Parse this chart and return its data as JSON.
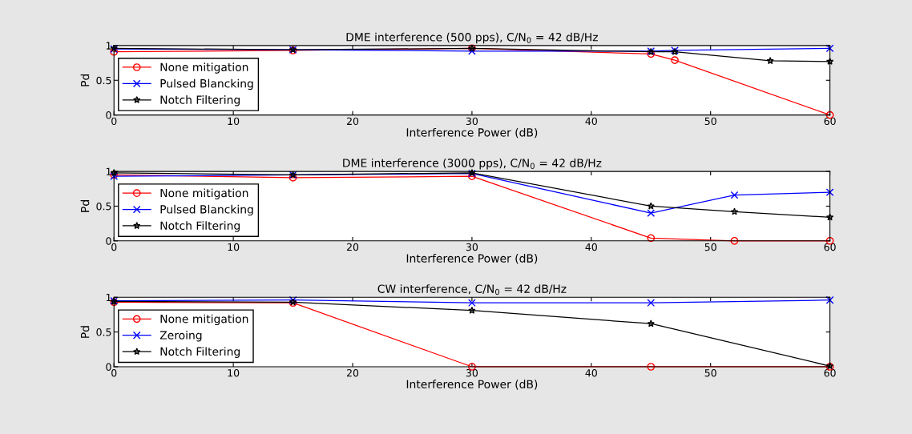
{
  "chart_data": [
    {
      "type": "line",
      "title": "DME interference (500 pps), C/N$_{0}$ = 42 dB/Hz",
      "xlabel": "Interference Power (dB)",
      "ylabel": "Pd",
      "xlim": [
        0,
        60
      ],
      "xticks": [
        0,
        10,
        20,
        30,
        40,
        50,
        60
      ],
      "ylim": [
        0,
        1
      ],
      "yticks": [
        0,
        0.5,
        1
      ],
      "grid": false,
      "legend": "bottom left",
      "series": [
        {
          "name": "None mitigation",
          "color": "#ff0000",
          "marker": "circle",
          "x": [
            0,
            15,
            30,
            45,
            47,
            60
          ],
          "values": [
            0.91,
            0.93,
            0.96,
            0.88,
            0.79,
            0
          ]
        },
        {
          "name": "Pulsed Blancking",
          "color": "#0000ff",
          "marker": "cross",
          "x": [
            0,
            15,
            30,
            45,
            47,
            60
          ],
          "values": [
            0.95,
            0.94,
            0.92,
            0.92,
            0.93,
            0.96
          ]
        },
        {
          "name": "Notch Filtering",
          "color": "#000000",
          "marker": "star",
          "x": [
            0,
            15,
            30,
            45,
            47,
            55,
            60
          ],
          "values": [
            0.96,
            0.94,
            0.96,
            0.91,
            0.91,
            0.78,
            0.77
          ]
        }
      ]
    },
    {
      "type": "line",
      "title": "DME interference (3000 pps), C/N$_{0}$ = 42 dB/Hz",
      "xlabel": "Interference Power (dB)",
      "ylabel": "Pd",
      "xlim": [
        0,
        60
      ],
      "xticks": [
        0,
        10,
        20,
        30,
        40,
        50,
        60
      ],
      "ylim": [
        0,
        1
      ],
      "yticks": [
        0,
        0.5,
        1
      ],
      "grid": false,
      "legend": "bottom left",
      "series": [
        {
          "name": "None mitigation",
          "color": "#ff0000",
          "marker": "circle",
          "x": [
            0,
            15,
            30,
            45,
            52,
            60
          ],
          "values": [
            0.95,
            0.91,
            0.93,
            0.04,
            0,
            0
          ]
        },
        {
          "name": "Pulsed Blancking",
          "color": "#0000ff",
          "marker": "cross",
          "x": [
            0,
            15,
            30,
            45,
            52,
            60
          ],
          "values": [
            0.93,
            0.95,
            0.97,
            0.4,
            0.66,
            0.7
          ]
        },
        {
          "name": "Notch Filtering",
          "color": "#000000",
          "marker": "star",
          "x": [
            0,
            15,
            30,
            45,
            52,
            60
          ],
          "values": [
            0.98,
            0.95,
            0.98,
            0.5,
            0.42,
            0.34
          ]
        }
      ]
    },
    {
      "type": "line",
      "title": "CW interference, C/N$_{0}$ = 42 dB/Hz",
      "xlabel": "Interference Power (dB)",
      "ylabel": "Pd",
      "xlim": [
        0,
        60
      ],
      "xticks": [
        0,
        10,
        20,
        30,
        40,
        50,
        60
      ],
      "ylim": [
        0,
        1
      ],
      "yticks": [
        0,
        0.5,
        1
      ],
      "grid": false,
      "legend": "bottom left",
      "series": [
        {
          "name": "None mitigation",
          "color": "#ff0000",
          "marker": "circle",
          "x": [
            0,
            15,
            30,
            45,
            60
          ],
          "values": [
            0.93,
            0.92,
            0,
            0,
            0
          ]
        },
        {
          "name": "Zeroing",
          "color": "#0000ff",
          "marker": "cross",
          "x": [
            0,
            15,
            30,
            45,
            60
          ],
          "values": [
            0.95,
            0.96,
            0.92,
            0.92,
            0.96
          ]
        },
        {
          "name": "Notch Filtering",
          "color": "#000000",
          "marker": "star",
          "x": [
            0,
            15,
            30,
            45,
            60
          ],
          "values": [
            0.94,
            0.93,
            0.81,
            0.62,
            0.01
          ]
        }
      ]
    }
  ]
}
